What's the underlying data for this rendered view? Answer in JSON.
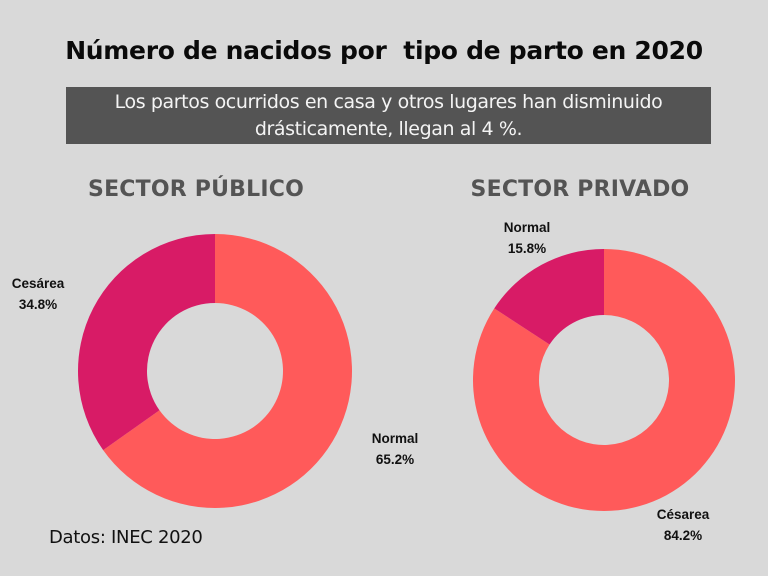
{
  "title": "Número de nacidos por  tipo de parto en 2020",
  "subtitle_lines": [
    "Los partos ocurridos en casa y otros lugares han disminuido",
    "drásticamente, llegan al 4 %."
  ],
  "source": "Datos: INEC 2020",
  "colors": {
    "background": "#d9d9d9",
    "normal_publico": "#ff5a5a",
    "cesarea_publico": "#d81b66",
    "subtitle_box": "#545454",
    "sector_title": "#545454"
  },
  "chart_data": [
    {
      "type": "pie",
      "variant": "donut",
      "title": "SECTOR PÚBLICO",
      "slices": [
        {
          "label": "Normal",
          "value": 65.2,
          "display": "65.2%",
          "color": "#ff5a5a"
        },
        {
          "label": "Cesárea",
          "value": 34.8,
          "display": "34.8%",
          "color": "#d81b66"
        }
      ],
      "start": "top",
      "direction": "clockwise"
    },
    {
      "type": "pie",
      "variant": "donut",
      "title": "SECTOR PRIVADO",
      "slices": [
        {
          "label": "Césarea",
          "value": 84.2,
          "display": "84.2%",
          "color": "#ff5a5a"
        },
        {
          "label": "Normal",
          "value": 15.8,
          "display": "15.8%",
          "color": "#d81b66"
        }
      ],
      "start": "top",
      "direction": "clockwise"
    }
  ]
}
